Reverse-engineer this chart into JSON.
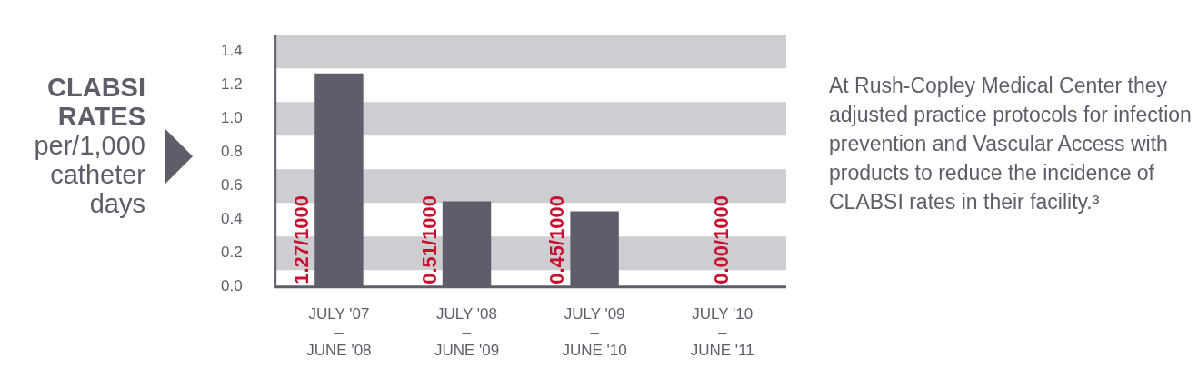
{
  "chart_data": {
    "type": "bar",
    "ylabel": "CLABSI RATES per/1,000 catheter days",
    "categories": [
      "JULY '07 – JUNE '08",
      "JULY '08 – JUNE '09",
      "JULY '09 – JUNE '10",
      "JULY '10 – JUNE '11"
    ],
    "values": [
      1.27,
      0.51,
      0.45,
      0.0
    ],
    "value_labels": [
      "1.27/1000",
      "0.51/1000",
      "0.45/1000",
      "0.00/1000"
    ],
    "color": "#5e5d69",
    "ylim": [
      0,
      1.5
    ],
    "yticks": [
      {
        "value": 0,
        "label": "0.0"
      },
      0.2,
      0.4,
      0.6,
      0.8,
      {
        "value": 1,
        "label": "1.0"
      },
      1.2,
      1.4
    ],
    "bands": [
      {
        "axis": "y",
        "from": 1.3,
        "to": 1.5,
        "color": "#cdcdd2"
      },
      {
        "axis": "y",
        "from": 0.9,
        "to": 1.1,
        "color": "#cdcdd2"
      },
      {
        "axis": "y",
        "from": 0.5,
        "to": 0.7,
        "color": "#cdcdd2"
      },
      {
        "axis": "y",
        "from": 0.1,
        "to": 0.3,
        "color": "#cdcdd2"
      }
    ],
    "legend": false,
    "annotations": [
      "At Rush-Copley Medical Center they adjusted practice protocols for infection prevention and Vascular Access with products to reduce the incidence of CLABSI rates in their facility.³"
    ]
  }
}
